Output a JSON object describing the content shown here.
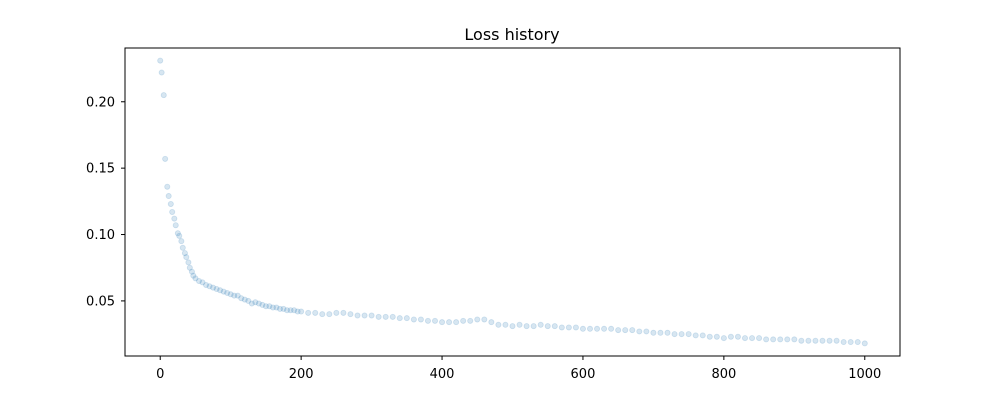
{
  "chart_data": {
    "type": "scatter",
    "title": "Loss history",
    "xlabel": "",
    "ylabel": "",
    "xlim": [
      -50,
      1050
    ],
    "ylim": [
      0.0085,
      0.2405
    ],
    "x_ticks": [
      0,
      200,
      400,
      600,
      800,
      1000
    ],
    "x_tick_labels": [
      "0",
      "200",
      "400",
      "600",
      "800",
      "1000"
    ],
    "y_ticks": [
      0.05,
      0.1,
      0.15,
      0.2
    ],
    "y_tick_labels": [
      "0.05",
      "0.10",
      "0.15",
      "0.20"
    ],
    "grid": false,
    "legend": "none",
    "series": [
      {
        "point_color": "#1f77b4",
        "point_opacity": 0.18,
        "x": [
          0,
          5,
          10,
          15,
          20,
          25,
          30,
          35,
          40,
          45,
          50,
          60,
          70,
          80,
          90,
          100,
          110,
          120,
          130,
          140,
          150,
          160,
          170,
          180,
          190,
          200,
          220,
          240,
          260,
          280,
          300,
          320,
          340,
          360,
          380,
          400,
          420,
          440,
          460,
          480,
          500,
          520,
          540,
          560,
          580,
          600,
          620,
          640,
          660,
          680,
          700,
          720,
          740,
          760,
          780,
          800,
          820,
          840,
          860,
          880,
          900,
          920,
          940,
          960,
          980,
          1000,
          2,
          7,
          12,
          17,
          22,
          27,
          32,
          37,
          42,
          47,
          55,
          65,
          75,
          85,
          95,
          105,
          115,
          125,
          135,
          145,
          155,
          165,
          175,
          185,
          195,
          210,
          230,
          250,
          270,
          290,
          310,
          330,
          350,
          370,
          390,
          410,
          430,
          450,
          470,
          490,
          510,
          530,
          550,
          570,
          590,
          610,
          630,
          650,
          670,
          690,
          710,
          730,
          750,
          770,
          790,
          810,
          830,
          850,
          870,
          890,
          910,
          930,
          950,
          970,
          990
        ],
        "y": [
          0.231,
          0.205,
          0.136,
          0.123,
          0.112,
          0.101,
          0.095,
          0.086,
          0.079,
          0.072,
          0.067,
          0.064,
          0.061,
          0.059,
          0.057,
          0.055,
          0.054,
          0.051,
          0.048,
          0.048,
          0.046,
          0.045,
          0.044,
          0.043,
          0.043,
          0.042,
          0.041,
          0.04,
          0.041,
          0.039,
          0.039,
          0.038,
          0.037,
          0.036,
          0.035,
          0.034,
          0.034,
          0.035,
          0.036,
          0.032,
          0.031,
          0.031,
          0.032,
          0.031,
          0.03,
          0.029,
          0.029,
          0.029,
          0.028,
          0.027,
          0.026,
          0.026,
          0.025,
          0.024,
          0.023,
          0.022,
          0.023,
          0.022,
          0.021,
          0.021,
          0.021,
          0.02,
          0.02,
          0.02,
          0.019,
          0.018,
          0.222,
          0.157,
          0.129,
          0.117,
          0.107,
          0.099,
          0.09,
          0.083,
          0.075,
          0.069,
          0.065,
          0.062,
          0.06,
          0.058,
          0.056,
          0.054,
          0.052,
          0.05,
          0.049,
          0.047,
          0.046,
          0.045,
          0.044,
          0.043,
          0.042,
          0.041,
          0.04,
          0.041,
          0.04,
          0.039,
          0.038,
          0.038,
          0.037,
          0.036,
          0.035,
          0.034,
          0.035,
          0.036,
          0.034,
          0.032,
          0.032,
          0.031,
          0.031,
          0.03,
          0.03,
          0.029,
          0.029,
          0.028,
          0.028,
          0.027,
          0.026,
          0.025,
          0.025,
          0.024,
          0.023,
          0.023,
          0.022,
          0.022,
          0.021,
          0.021,
          0.02,
          0.02,
          0.02,
          0.019,
          0.019
        ]
      }
    ]
  }
}
